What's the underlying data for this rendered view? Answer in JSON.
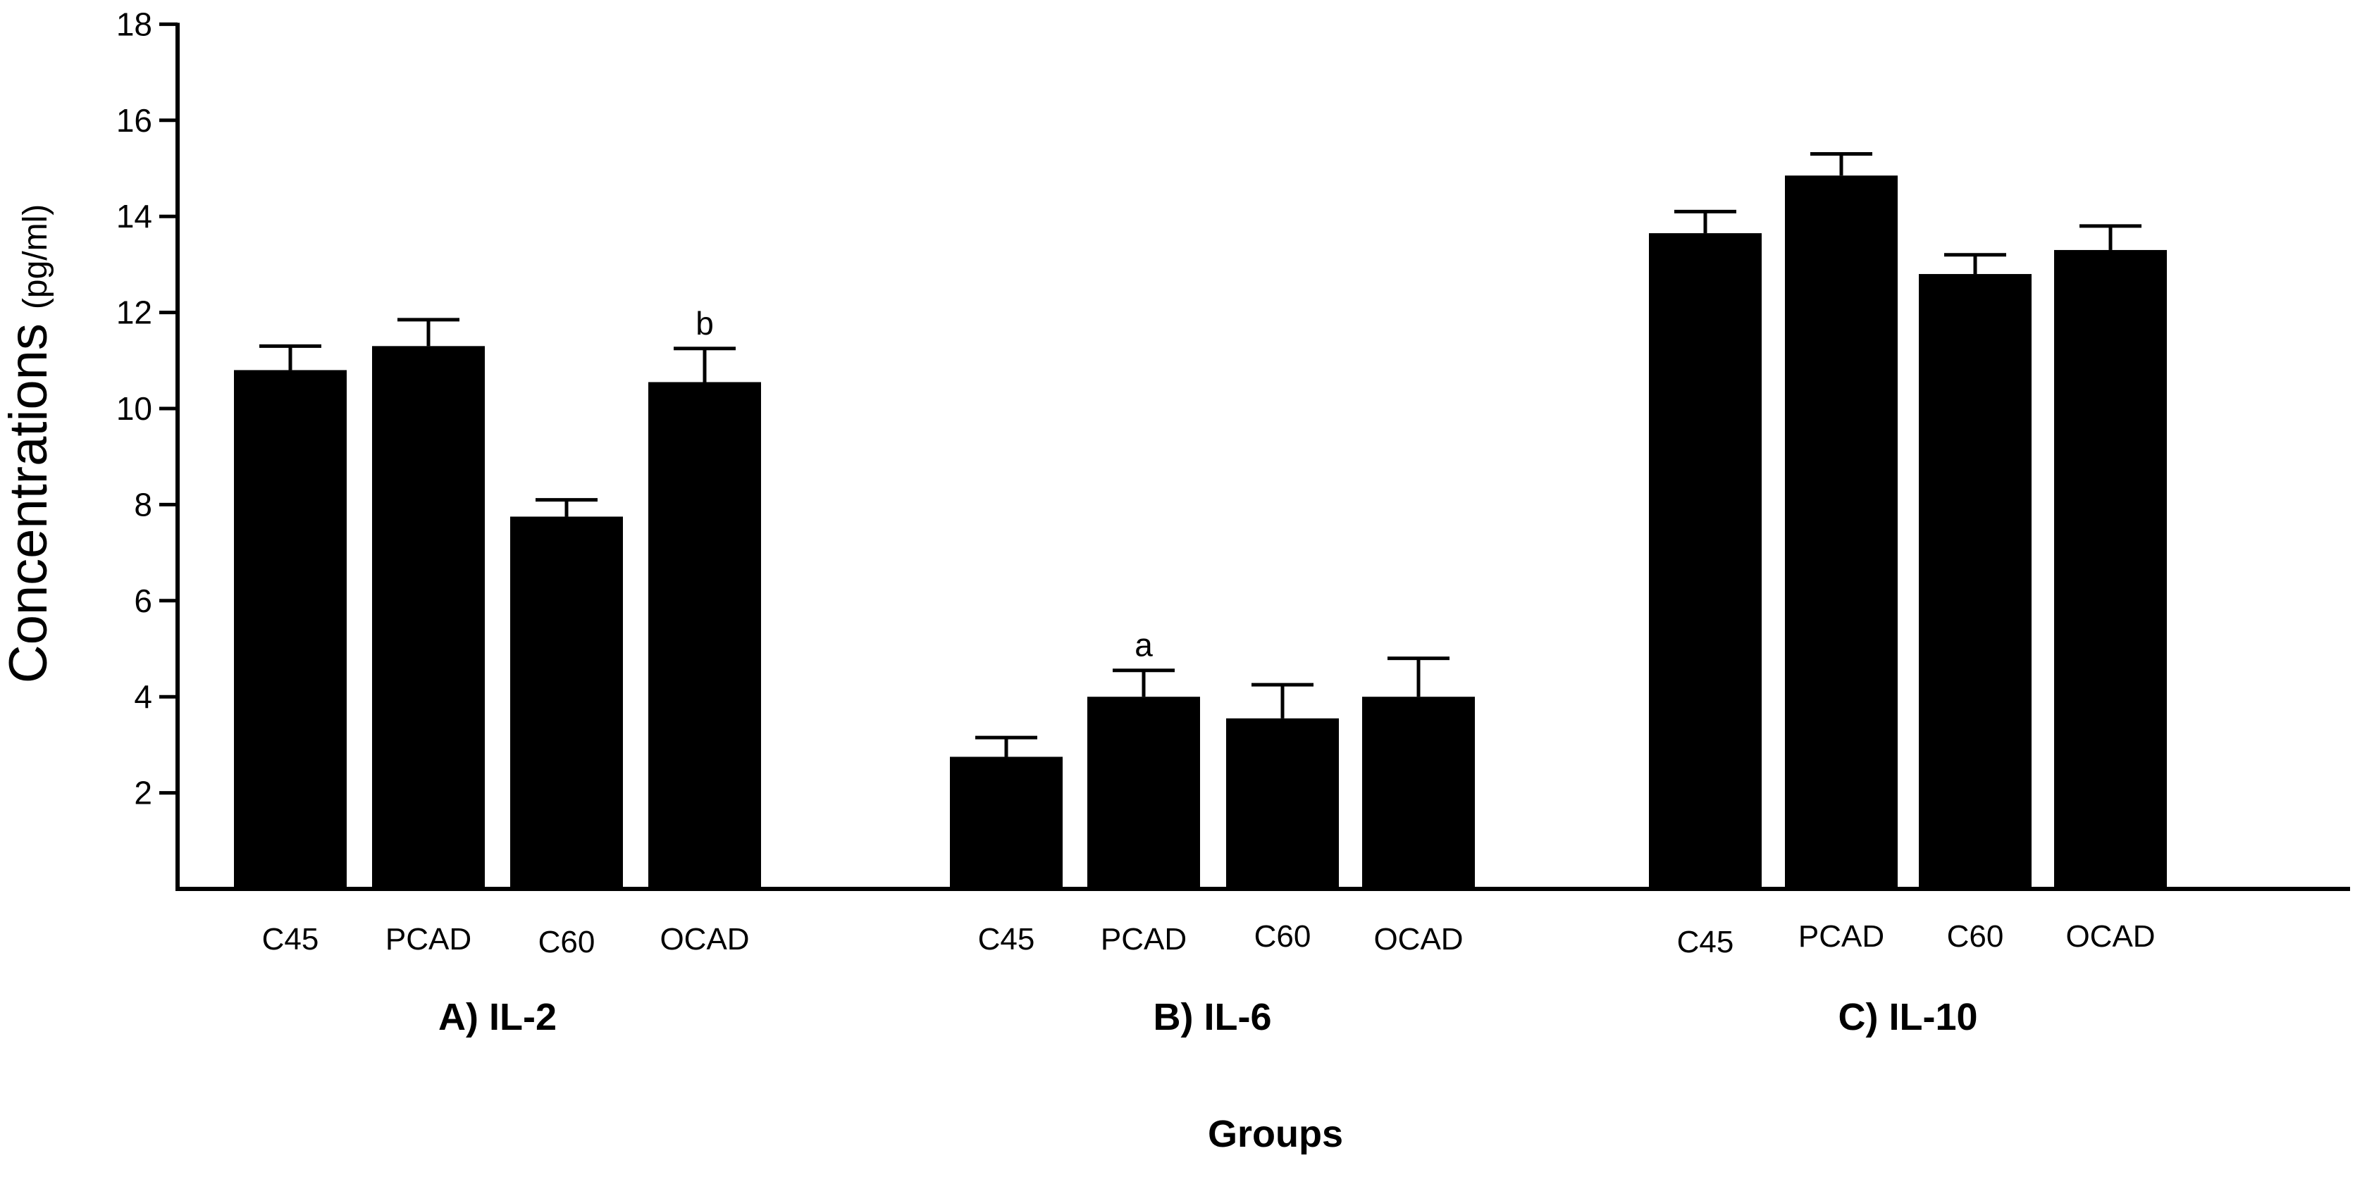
{
  "chart_data": {
    "type": "bar",
    "ylabel": "Concentrations",
    "ylabel_unit": "(pg/ml)",
    "xlabel": "Groups",
    "ylim": [
      0,
      18
    ],
    "yticks": [
      2,
      4,
      6,
      8,
      10,
      12,
      14,
      16,
      18
    ],
    "grid": false,
    "colors": {
      "bar": "#000000",
      "axis": "#000000",
      "background": "#ffffff"
    },
    "groups": [
      {
        "name": "A) IL-2",
        "categories": [
          "C45",
          "PCAD",
          "C60",
          "OCAD"
        ],
        "values": [
          10.8,
          11.3,
          7.75,
          10.55
        ],
        "errors": [
          0.5,
          0.55,
          0.35,
          0.7
        ],
        "annotations": [
          null,
          null,
          null,
          "b"
        ]
      },
      {
        "name": "B) IL-6",
        "categories": [
          "C45",
          "PCAD",
          "C60",
          "OCAD"
        ],
        "values": [
          2.75,
          4.0,
          3.55,
          4.0
        ],
        "errors": [
          0.4,
          0.55,
          0.7,
          0.8
        ],
        "annotations": [
          null,
          "a",
          null,
          null
        ]
      },
      {
        "name": "C) IL-10",
        "categories": [
          "C45",
          "PCAD",
          "C60",
          "OCAD"
        ],
        "values": [
          13.65,
          14.85,
          12.8,
          13.3
        ],
        "errors": [
          0.45,
          0.45,
          0.4,
          0.5
        ],
        "annotations": [
          null,
          null,
          null,
          null
        ]
      }
    ]
  }
}
